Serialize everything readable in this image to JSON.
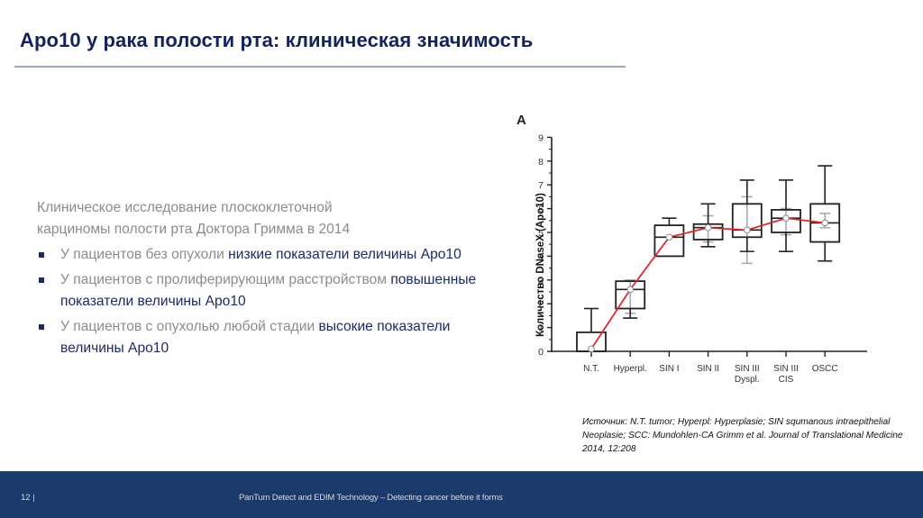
{
  "slide": {
    "title": "Apo10 у рака полости рта: клиническая значимость",
    "intro_line1": "Клиническое исследование плоскоклеточной",
    "intro_line2": "карциномы полости рта Доктора Гримма в 2014",
    "bullets": [
      {
        "normal": "У пациентов без опухоли ",
        "highlight": "низкие показатели величины Apo10"
      },
      {
        "normal": "У пациентов с пролиферирующим расстройством ",
        "highlight": "повышенные показатели величины Apo10"
      },
      {
        "normal": "У пациентов с опухолью любой стадии ",
        "highlight": "высокие показатели величины Apo10"
      }
    ],
    "source": "Источник: N.T. tumor; Hyperpl: Hyperplasie; SIN squmanous intraepithelial Neoplasie; SCC: Mundohlen-CA Grimm et al. Journal of Translational Medicine 2014, 12:208"
  },
  "footer": {
    "page": "12 |",
    "tagline": "PanTum Detect and EDIM Technology  – Detecting cancer before it forms"
  },
  "colors": {
    "title": "#12225c",
    "highlight": "#1c2a66",
    "body_gray": "#8c8c8c",
    "footer_bg": "#1a3a6b",
    "mean_line": "#e0282e"
  },
  "chart_data": {
    "type": "box",
    "panel_label": "A",
    "title": "",
    "xlabel": "",
    "ylabel": "Количество DNaseX (Apo10)",
    "ylim": [
      0,
      9
    ],
    "yticks": [
      0,
      1,
      2,
      3,
      4,
      5,
      6,
      7,
      8,
      9
    ],
    "grid": false,
    "categories": [
      "N.T.",
      "Hyperpl.",
      "SIN I",
      "SIN II",
      "SIN III Dyspl.",
      "SIN III CIS",
      "OSCC"
    ],
    "category_lines": [
      [
        "N.T."
      ],
      [
        "Hyperpl."
      ],
      [
        "SIN I"
      ],
      [
        "SIN II"
      ],
      [
        "SIN III",
        "Dyspl."
      ],
      [
        "SIN III",
        "CIS"
      ],
      [
        "OSCC"
      ]
    ],
    "boxes": [
      {
        "category": "N.T.",
        "whisker_low": 0,
        "q1": 0,
        "median": 0,
        "q3": 0.8,
        "whisker_high": 1.8,
        "sd_low": null,
        "sd_high": null
      },
      {
        "category": "Hyperpl.",
        "whisker_low": 1.4,
        "q1": 1.8,
        "median": 2.6,
        "q3": 2.95,
        "whisker_high": 2.95,
        "sd_low": 1.6,
        "sd_high": 3.0
      },
      {
        "category": "SIN I",
        "whisker_low": 4.0,
        "q1": 4.0,
        "median": 4.8,
        "q3": 5.3,
        "whisker_high": 5.6,
        "sd_low": null,
        "sd_high": null
      },
      {
        "category": "SIN II",
        "whisker_low": 4.4,
        "q1": 4.7,
        "median": 5.2,
        "q3": 5.35,
        "whisker_high": 6.2,
        "sd_low": 4.6,
        "sd_high": 5.7
      },
      {
        "category": "SIN III Dyspl.",
        "whisker_low": 4.2,
        "q1": 4.8,
        "median": 5.1,
        "q3": 6.2,
        "whisker_high": 7.2,
        "sd_low": 3.7,
        "sd_high": 6.5
      },
      {
        "category": "SIN III CIS",
        "whisker_low": 4.2,
        "q1": 5.0,
        "median": 5.6,
        "q3": 5.95,
        "whisker_high": 7.2,
        "sd_low": 4.9,
        "sd_high": 6.0
      },
      {
        "category": "OSCC",
        "whisker_low": 3.8,
        "q1": 4.6,
        "median": 5.4,
        "q3": 6.2,
        "whisker_high": 7.8,
        "sd_low": 5.2,
        "sd_high": 5.8
      }
    ],
    "series": [
      {
        "name": "mean",
        "color": "#e0282e",
        "values": [
          0.1,
          2.6,
          4.8,
          5.2,
          5.1,
          5.6,
          5.4
        ]
      }
    ]
  }
}
